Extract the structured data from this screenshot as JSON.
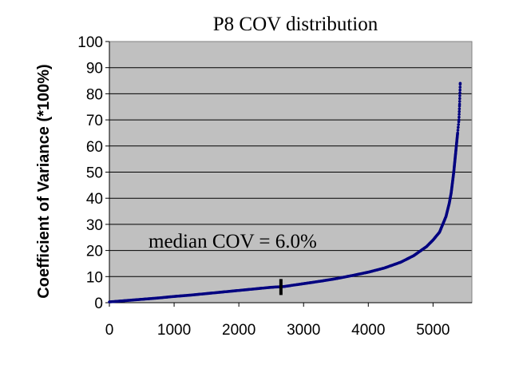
{
  "chart_data": {
    "type": "scatter",
    "title": "P8 COV distribution",
    "xlabel": "",
    "ylabel": "Coefficient of Variance (*100%)",
    "xlim": [
      0,
      5600
    ],
    "ylim": [
      0,
      100
    ],
    "x_ticks": [
      0,
      1000,
      2000,
      3000,
      4000,
      5000
    ],
    "y_ticks": [
      0,
      10,
      20,
      30,
      40,
      50,
      60,
      70,
      80,
      90,
      100
    ],
    "grid": "horizontal",
    "legend": "none",
    "plot_background": "#c0c0c0",
    "series_color": "#000080",
    "series": [
      {
        "x": [
          0,
          250,
          500,
          750,
          1000,
          1250,
          1500,
          1750,
          2000,
          2250,
          2500,
          2700,
          3000,
          3250,
          3500,
          3750,
          4000,
          4250,
          4500,
          4700,
          4900,
          5000,
          5100,
          5150,
          5200,
          5250,
          5280,
          5300,
          5320,
          5340,
          5360,
          5380,
          5400,
          5410,
          5420
        ],
        "y": [
          0.3,
          0.8,
          1.3,
          1.8,
          2.4,
          2.9,
          3.5,
          4.1,
          4.7,
          5.3,
          5.9,
          6.2,
          7.3,
          8.2,
          9.2,
          10.4,
          11.7,
          13.3,
          15.5,
          18.0,
          21.5,
          24.0,
          27.0,
          30.0,
          33.0,
          38.0,
          42.0,
          46.0,
          50.0,
          55.0,
          60.0,
          65.0,
          70.0,
          76.0,
          84.0
        ]
      }
    ],
    "median_marker": {
      "x": 2650,
      "y": 6.0
    },
    "annotation": "median COV = 6.0%"
  }
}
